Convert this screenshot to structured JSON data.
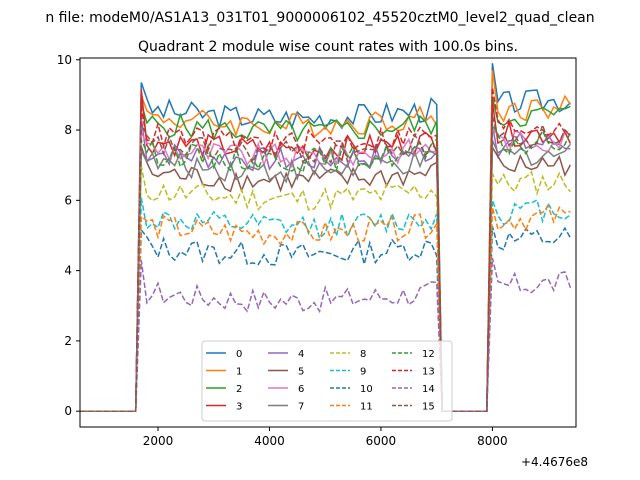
{
  "suptitle": "n file: modeM0/AS1A13_031T01_9000006102_45520cztM0_level2_quad_clean",
  "chart_data": {
    "type": "line",
    "title": "Quadrant 2 module wise count rates with 100.0s bins.",
    "xlabel": "",
    "ylabel": "",
    "x_offset_label": "+4.4676e8",
    "xlim": [
      600,
      9500
    ],
    "ylim": [
      -0.45,
      10.05
    ],
    "xticks": [
      2000,
      4000,
      6000,
      8000
    ],
    "yticks": [
      0,
      2,
      4,
      6,
      8,
      10
    ],
    "grid": false,
    "legend_position": "lower center",
    "legend_columns": 4,
    "x": [
      600,
      700,
      800,
      900,
      1000,
      1100,
      1200,
      1300,
      1400,
      1500,
      1600,
      1700,
      1800,
      1900,
      2000,
      2100,
      2200,
      2300,
      2400,
      2500,
      2600,
      2700,
      2800,
      2900,
      3000,
      3100,
      3200,
      3300,
      3400,
      3500,
      3600,
      3700,
      3800,
      3900,
      4000,
      4100,
      4200,
      4300,
      4400,
      4500,
      4600,
      4700,
      4800,
      4900,
      5000,
      5100,
      5200,
      5300,
      5400,
      5500,
      5600,
      5700,
      5800,
      5900,
      6000,
      6100,
      6200,
      6300,
      6400,
      6500,
      6600,
      6700,
      6800,
      6900,
      7000,
      7100,
      7200,
      7300,
      7400,
      7500,
      7600,
      7700,
      7800,
      7900,
      8000,
      8100,
      8200,
      8300,
      8400,
      8500,
      8600,
      8700,
      8800,
      8900,
      9000,
      9100,
      9200,
      9300,
      9400
    ],
    "series": [
      {
        "name": "0",
        "color": "#1f77b4",
        "dash": "solid",
        "level": 8.6,
        "first": 9.55
      },
      {
        "name": "1",
        "color": "#ff7f0e",
        "dash": "solid",
        "level": 8.4,
        "first": 9.3
      },
      {
        "name": "2",
        "color": "#2ca02c",
        "dash": "solid",
        "level": 8.2,
        "first": 8.5
      },
      {
        "name": "3",
        "color": "#d62728",
        "dash": "solid",
        "level": 7.7,
        "first": 9.0
      },
      {
        "name": "4",
        "color": "#9467bd",
        "dash": "solid",
        "level": 7.4,
        "first": 8.3
      },
      {
        "name": "5",
        "color": "#8c564b",
        "dash": "solid",
        "level": 6.8,
        "first": 7.6
      },
      {
        "name": "6",
        "color": "#e377c2",
        "dash": "solid",
        "level": 7.5,
        "first": 8.1
      },
      {
        "name": "7",
        "color": "#7f7f7f",
        "dash": "solid",
        "level": 7.1,
        "first": 7.7
      },
      {
        "name": "8",
        "color": "#bcbd22",
        "dash": "dashed",
        "level": 6.3,
        "first": 6.7
      },
      {
        "name": "9",
        "color": "#17becf",
        "dash": "dashed",
        "level": 5.5,
        "first": 5.9
      },
      {
        "name": "10",
        "color": "#1f77b4",
        "dash": "dashed",
        "level": 4.7,
        "first": 5.1
      },
      {
        "name": "11",
        "color": "#ff7f0e",
        "dash": "dashed",
        "level": 5.3,
        "first": 5.6
      },
      {
        "name": "12",
        "color": "#2ca02c",
        "dash": "dashed",
        "level": 7.4,
        "first": 7.9
      },
      {
        "name": "13",
        "color": "#d62728",
        "dash": "dashed",
        "level": 7.9,
        "first": 8.9
      },
      {
        "name": "14",
        "color": "#9467bd",
        "dash": "dashed",
        "level": 3.4,
        "first": 4.0
      },
      {
        "name": "15",
        "color": "#8c564b",
        "dash": "dashed",
        "level": 7.6,
        "first": 8.0
      }
    ],
    "active_ranges": [
      [
        1700,
        7000
      ],
      [
        8000,
        9400
      ]
    ]
  }
}
